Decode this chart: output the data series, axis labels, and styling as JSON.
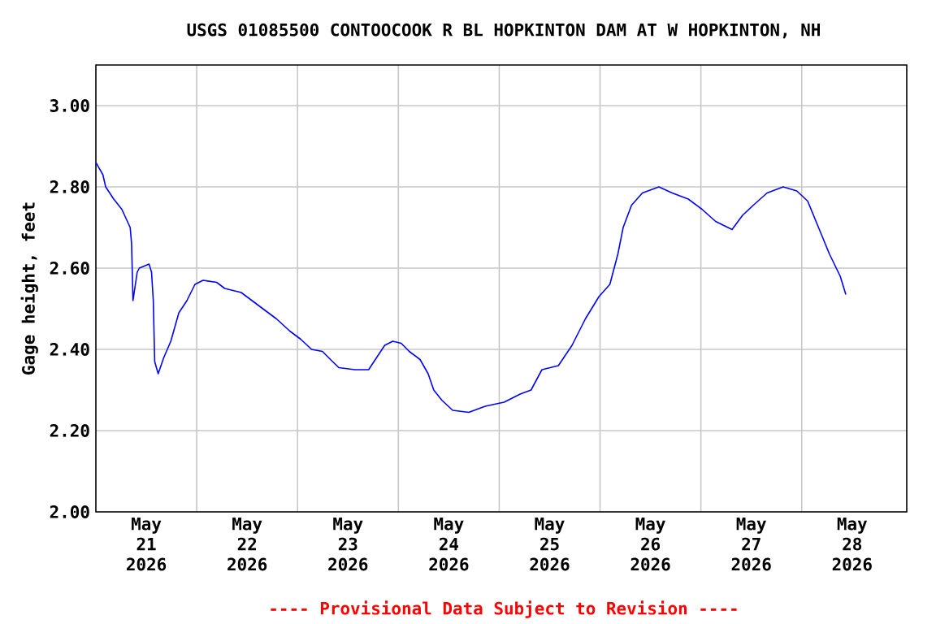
{
  "chart_data": {
    "type": "line",
    "title": "USGS 01085500 CONTOOCOOK R BL HOPKINTON DAM AT W HOPKINTON, NH",
    "ylabel": "Gage height, feet",
    "annotations": [
      "---- Provisional Data Subject to Revision ----"
    ],
    "x": [
      "2026-05-21T00:00",
      "2026-05-21T01:40",
      "2026-05-21T02:20",
      "2026-05-21T04:15",
      "2026-05-21T06:10",
      "2026-05-21T08:10",
      "2026-05-21T08:30",
      "2026-05-21T08:50",
      "2026-05-21T09:50",
      "2026-05-21T10:20",
      "2026-05-21T12:40",
      "2026-05-21T13:15",
      "2026-05-21T13:40",
      "2026-05-21T14:00",
      "2026-05-21T14:50",
      "2026-05-21T16:10",
      "2026-05-21T17:50",
      "2026-05-21T19:45",
      "2026-05-21T21:40",
      "2026-05-21T23:35",
      "2026-05-22T01:30",
      "2026-05-22T04:45",
      "2026-05-22T06:40",
      "2026-05-22T10:35",
      "2026-05-22T13:10",
      "2026-05-22T15:45",
      "2026-05-22T19:00",
      "2026-05-22T22:10",
      "2026-05-23T00:45",
      "2026-05-23T03:20",
      "2026-05-23T05:55",
      "2026-05-23T07:50",
      "2026-05-23T09:50",
      "2026-05-23T13:40",
      "2026-05-23T16:55",
      "2026-05-23T18:50",
      "2026-05-23T20:45",
      "2026-05-23T22:40",
      "2026-05-24T00:40",
      "2026-05-24T02:35",
      "2026-05-24T05:10",
      "2026-05-24T07:05",
      "2026-05-24T08:25",
      "2026-05-24T10:20",
      "2026-05-24T12:55",
      "2026-05-24T16:45",
      "2026-05-24T20:40",
      "2026-05-25T01:10",
      "2026-05-25T05:00",
      "2026-05-25T07:35",
      "2026-05-25T10:10",
      "2026-05-25T14:05",
      "2026-05-25T17:20",
      "2026-05-25T20:30",
      "2026-05-25T23:45",
      "2026-05-26T02:20",
      "2026-05-26T04:15",
      "2026-05-26T05:30",
      "2026-05-26T07:30",
      "2026-05-26T10:05",
      "2026-05-26T14:00",
      "2026-05-26T17:10",
      "2026-05-26T21:00",
      "2026-05-27T00:15",
      "2026-05-27T03:30",
      "2026-05-27T07:25",
      "2026-05-27T09:55",
      "2026-05-27T12:30",
      "2026-05-27T15:45",
      "2026-05-27T19:35",
      "2026-05-27T22:50",
      "2026-05-28T01:25",
      "2026-05-28T04:00",
      "2026-05-28T06:35",
      "2026-05-28T09:10",
      "2026-05-28T10:30"
    ],
    "series": [
      {
        "color": "#0000ff",
        "values": [
          2.86,
          2.83,
          2.8,
          2.77,
          2.745,
          2.7,
          2.66,
          2.52,
          2.59,
          2.6,
          2.61,
          2.59,
          2.52,
          2.37,
          2.34,
          2.38,
          2.42,
          2.49,
          2.52,
          2.56,
          2.57,
          2.565,
          2.55,
          2.54,
          2.52,
          2.5,
          2.475,
          2.445,
          2.425,
          2.4,
          2.395,
          2.375,
          2.355,
          2.35,
          2.35,
          2.38,
          2.41,
          2.42,
          2.415,
          2.395,
          2.375,
          2.34,
          2.3,
          2.275,
          2.25,
          2.245,
          2.26,
          2.27,
          2.29,
          2.3,
          2.35,
          2.36,
          2.41,
          2.475,
          2.53,
          2.56,
          2.635,
          2.7,
          2.755,
          2.785,
          2.8,
          2.785,
          2.77,
          2.745,
          2.715,
          2.695,
          2.73,
          2.755,
          2.785,
          2.8,
          2.79,
          2.765,
          2.7,
          2.635,
          2.58,
          2.535
        ]
      }
    ],
    "xlim": [
      "2026-05-21T00:00",
      "2026-05-29T01:00"
    ],
    "xticks": [
      {
        "value": "2026-05-21T12:00",
        "label": "May 21 2026"
      },
      {
        "value": "2026-05-22T12:00",
        "label": "May 22 2026"
      },
      {
        "value": "2026-05-23T12:00",
        "label": "May 23 2026"
      },
      {
        "value": "2026-05-24T12:00",
        "label": "May 24 2026"
      },
      {
        "value": "2026-05-25T12:00",
        "label": "May 25 2026"
      },
      {
        "value": "2026-05-26T12:00",
        "label": "May 26 2026"
      },
      {
        "value": "2026-05-27T12:00",
        "label": "May 27 2026"
      },
      {
        "value": "2026-05-28T12:00",
        "label": "May 28 2026"
      },
      {
        "value": "2026-05-22T00:00",
        "label": null
      },
      {
        "value": "2026-05-23T00:00",
        "label": null
      },
      {
        "value": "2026-05-24T00:00",
        "label": null
      },
      {
        "value": "2026-05-25T00:00",
        "label": null
      },
      {
        "value": "2026-05-26T00:00",
        "label": null
      },
      {
        "value": "2026-05-27T00:00",
        "label": null
      },
      {
        "value": "2026-05-28T00:00",
        "label": null
      }
    ],
    "ylim": [
      2.0,
      3.1
    ],
    "yticks": [
      {
        "value": 2.0,
        "label": "2.00"
      },
      {
        "value": 2.2,
        "label": "2.20"
      },
      {
        "value": 2.4,
        "label": "2.40"
      },
      {
        "value": 2.6,
        "label": "2.60"
      },
      {
        "value": 2.8,
        "label": "2.80"
      },
      {
        "value": 3.0,
        "label": "3.00"
      }
    ],
    "grid": true,
    "marker": "none",
    "line_style": "solid"
  }
}
